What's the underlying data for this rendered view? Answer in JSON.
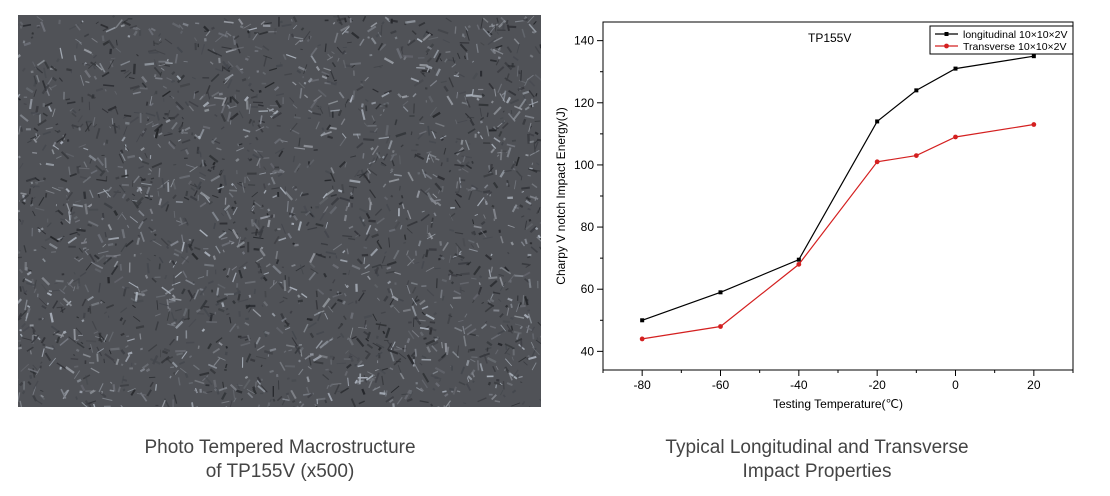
{
  "photo": {
    "description_caption_lines": [
      "Photo Tempered Macrostructure",
      "of TP155V (x500)"
    ]
  },
  "chart_caption": {
    "lines": [
      "Typical Longitudinal and Transverse",
      "Impact Properties"
    ]
  },
  "colors": {
    "longitudinal": "#000000",
    "transverse": "#d42020",
    "photo_base": "#505257"
  },
  "chart_data": {
    "type": "line",
    "title": "TP155V",
    "xlabel": "Testing Temperature(℃)",
    "ylabel": "Charpy V notch Impact Energy(J)",
    "xlim": [
      -90,
      30
    ],
    "ylim": [
      34,
      146
    ],
    "x_ticks": [
      -80,
      -60,
      -40,
      -20,
      0,
      20
    ],
    "y_ticks": [
      40,
      60,
      80,
      100,
      120,
      140
    ],
    "x_tick_labels": [
      "-80",
      "-60",
      "-40",
      "-20",
      "0",
      "20"
    ],
    "y_tick_labels": [
      "40",
      "60",
      "80",
      "100",
      "120",
      "140"
    ],
    "grid": false,
    "legend_position": "top-right",
    "series": [
      {
        "name": "longitudinal 10×10×2V",
        "marker": "square",
        "color": "#000000",
        "x": [
          -80,
          -60,
          -40,
          -20,
          -10,
          0,
          20
        ],
        "y": [
          50,
          59,
          69.5,
          114,
          124,
          131,
          135
        ]
      },
      {
        "name": "Transverse 10×10×2V",
        "marker": "circle",
        "color": "#d42020",
        "x": [
          -80,
          -60,
          -40,
          -20,
          -10,
          0,
          20
        ],
        "y": [
          44,
          48,
          68,
          101,
          103,
          109,
          113
        ]
      }
    ]
  }
}
